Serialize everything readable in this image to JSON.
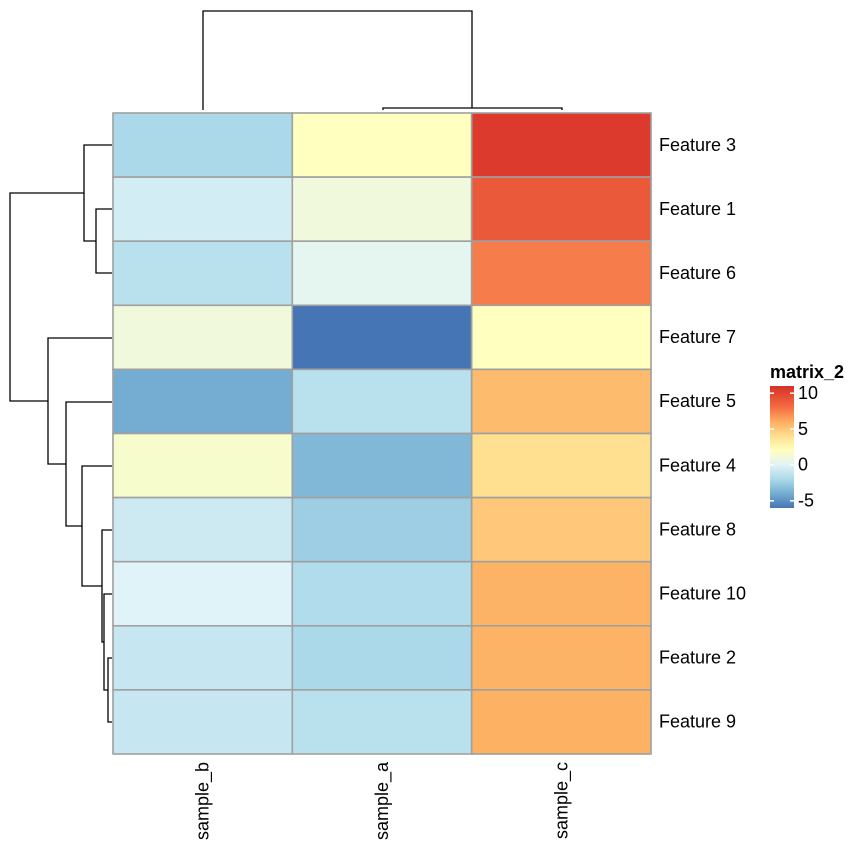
{
  "chart_data": {
    "type": "heatmap",
    "legend_title": "matrix_2",
    "legend_ticks": [
      10,
      5,
      0,
      -5
    ],
    "legend_labels": [
      "10",
      "5",
      "0",
      "-5"
    ],
    "color_stops": [
      {
        "value": -6,
        "color": "#4575b4"
      },
      {
        "value": -4,
        "color": "#74add1"
      },
      {
        "value": -2,
        "color": "#abd9e9"
      },
      {
        "value": 0,
        "color": "#e0f3f8"
      },
      {
        "value": 2,
        "color": "#ffffbf"
      },
      {
        "value": 4,
        "color": "#fee090"
      },
      {
        "value": 6,
        "color": "#fdae61"
      },
      {
        "value": 8,
        "color": "#f46d43"
      },
      {
        "value": 11,
        "color": "#d73027"
      }
    ],
    "columns": [
      "sample_b",
      "sample_a",
      "sample_c"
    ],
    "rows": [
      "Feature 3",
      "Feature 1",
      "Feature 6",
      "Feature 7",
      "Feature 5",
      "Feature 4",
      "Feature 8",
      "Feature 10",
      "Feature 2",
      "Feature 9"
    ],
    "values": [
      [
        -2.0,
        2.0,
        10.5
      ],
      [
        -0.5,
        1.0,
        9.0
      ],
      [
        -1.5,
        0.3,
        7.5
      ],
      [
        1.0,
        -6.0,
        2.0
      ],
      [
        -4.0,
        -1.5,
        5.5
      ],
      [
        1.5,
        -3.5,
        4.0
      ],
      [
        -0.7,
        -2.5,
        5.0
      ],
      [
        0.0,
        -1.8,
        5.8
      ],
      [
        -1.0,
        -2.0,
        5.8
      ],
      [
        -1.0,
        -1.5,
        5.9
      ]
    ]
  }
}
